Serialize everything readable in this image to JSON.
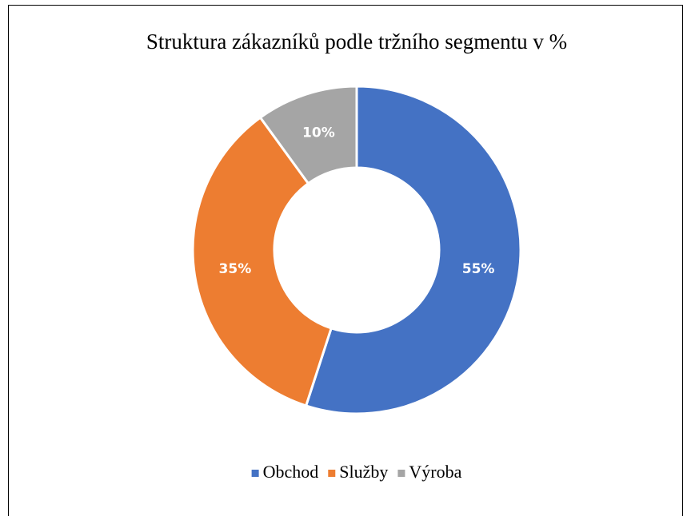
{
  "chart_data": {
    "type": "donut",
    "title": "Struktura zákazníků podle tržního segmentu v %",
    "categories": [
      "Obchod",
      "Služby",
      "Výroba"
    ],
    "values": [
      55,
      35,
      10
    ],
    "value_labels": [
      "55%",
      "35%",
      "10%"
    ],
    "colors": [
      "#4472c4",
      "#ed7d31",
      "#a5a5a5"
    ],
    "legend": "bottom"
  }
}
